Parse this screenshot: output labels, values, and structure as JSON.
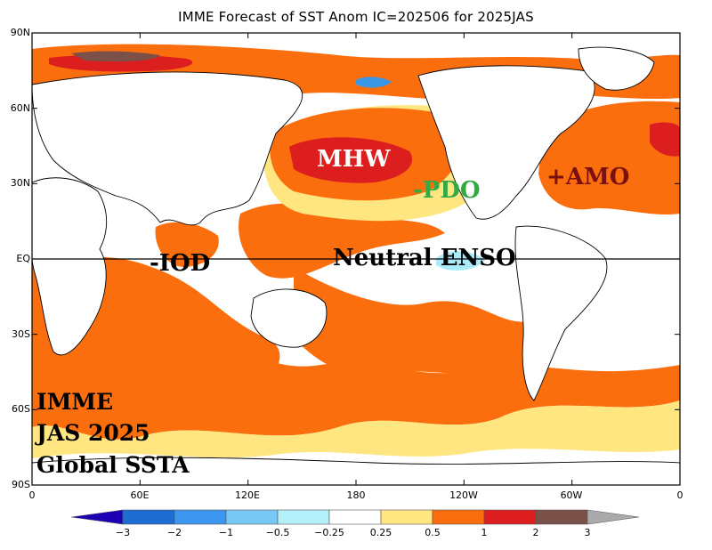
{
  "title": "IMME Forecast of SST Anom IC=202506 for 2025JAS",
  "map": {
    "lat_labels": [
      "90N",
      "60N",
      "30N",
      "EQ",
      "30S",
      "60S",
      "90S"
    ],
    "lon_labels": [
      "0",
      "60E",
      "120E",
      "180",
      "120W",
      "60W",
      "0"
    ],
    "colors": {
      "background": "#ffffff",
      "land": "#ffffff",
      "coast": "#000000",
      "light_yellow": "#ffe680",
      "orange": "#fa6e0e",
      "red": "#dc1e1e",
      "brown": "#7a5048",
      "light_blue": "#aaebfa",
      "blue": "#3c96e6"
    }
  },
  "colorbar": {
    "labels": [
      "−3",
      "−2",
      "−1",
      "−0.5",
      "−0.25",
      "0.25",
      "0.5",
      "1",
      "2",
      "3"
    ],
    "colors": [
      "#1e00b4",
      "#1e6ed2",
      "#3c96f0",
      "#78c8f5",
      "#b4f0fa",
      "#ffffff",
      "#ffe680",
      "#fa6e0e",
      "#dc1e1e",
      "#7a5048",
      "#aaaaaa"
    ]
  },
  "annotations": {
    "mhw": {
      "text": "MHW",
      "color": "#ffffff"
    },
    "pdo": {
      "text": "-PDO",
      "color": "#33aa44"
    },
    "amo": {
      "text": "+AMO",
      "color": "#7a1010"
    },
    "iod": {
      "text": "-IOD",
      "color": "#000000"
    },
    "enso": {
      "text": "Neutral ENSO",
      "color": "#000000"
    }
  },
  "corner_text": {
    "line1": "IMME",
    "line2": "JAS 2025",
    "line3": "Global SSTA"
  }
}
